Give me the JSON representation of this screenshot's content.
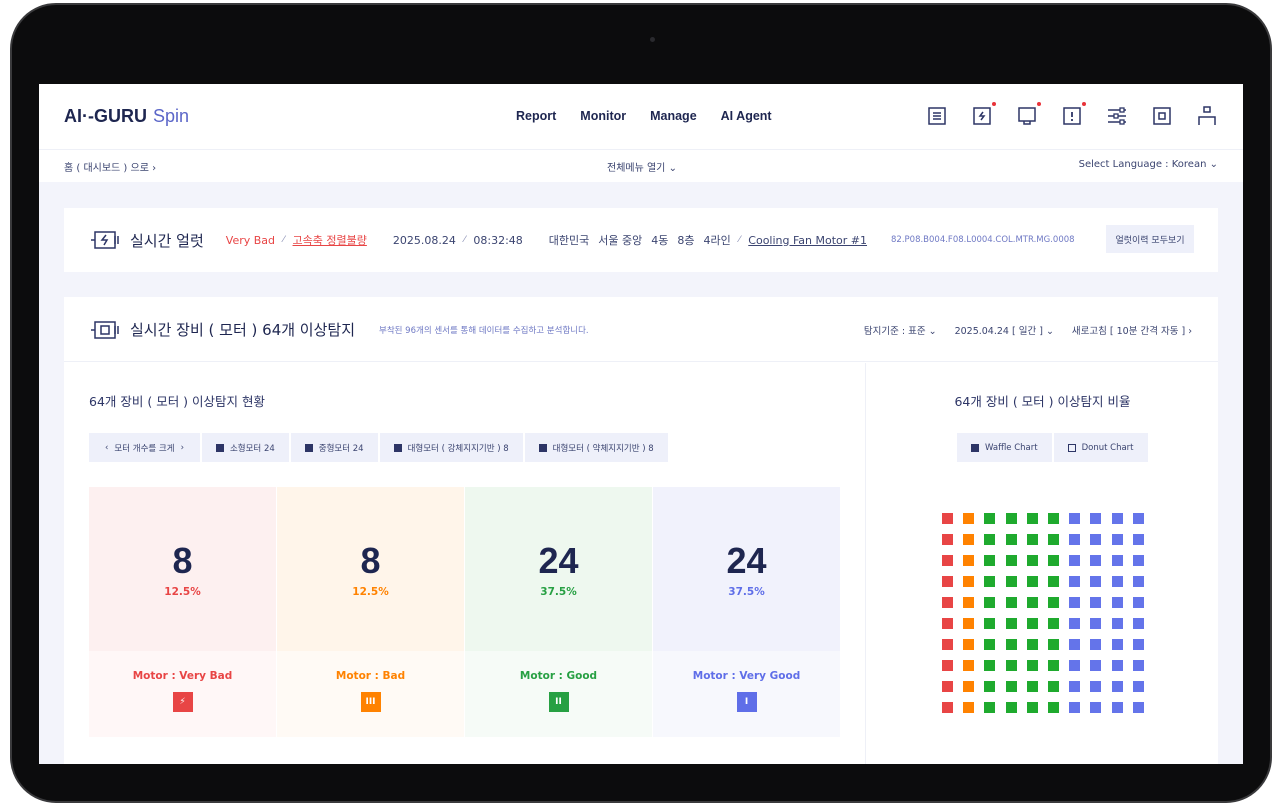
{
  "header": {
    "logo": "AI·-GURU",
    "logo_suffix": "Spin",
    "nav": [
      "Report",
      "Monitor",
      "Manage",
      "AI Agent"
    ],
    "icons": [
      {
        "name": "report-list-icon",
        "dot": false
      },
      {
        "name": "alert-bolt-icon",
        "dot": true
      },
      {
        "name": "monitor-icon",
        "dot": true
      },
      {
        "name": "warning-icon",
        "dot": true
      },
      {
        "name": "settings-sliders-icon",
        "dot": false
      },
      {
        "name": "device-icon",
        "dot": false
      },
      {
        "name": "user-icon",
        "dot": false
      }
    ]
  },
  "breadcrumb": {
    "home": "홈 ( 대시보드 ) 으로",
    "menu": "전체메뉴 열기",
    "language": "Select Language : Korean"
  },
  "alert": {
    "title": "실시간 얼럿",
    "status": "Very Bad",
    "issue": "고속축 정렬불량",
    "date": "2025.08.24",
    "time": "08:32:48",
    "location": [
      "대한민국",
      "서울 중앙",
      "4동",
      "8층",
      "4라인"
    ],
    "device": "Cooling Fan Motor #1",
    "code": "82.P08.B004.F08.L0004.COL.MTR.MG.0008",
    "history_button": "얼럿이력 모두보기"
  },
  "main": {
    "title": "실시간 장비 ( 모터 ) 64개 이상탐지",
    "subtitle": "부착된 96개의 센서를 통해 데이터를 수집하고 분석합니다.",
    "options": [
      "탐지기준 : 표준",
      "2025.04.24 [ 일간 ]",
      "새로고침 [ 10분 간격 자동 ]"
    ]
  },
  "left": {
    "title": "64개 장비 ( 모터 ) 이상탐지 현황",
    "tabs": [
      "모터 개수를 크게",
      "소형모터 24",
      "중형모터 24",
      "대형모터 ( 강체지지기반 ) 8",
      "대형모터 ( 약체지지기반 ) 8"
    ],
    "cards": [
      {
        "count": "8",
        "percent": "12.5%",
        "label": "Motor : Very Bad",
        "color": "#e84545",
        "bg": "#fdf0f0",
        "bg2": "#fff7f7",
        "badge": "⚡"
      },
      {
        "count": "8",
        "percent": "12.5%",
        "label": "Motor : Bad",
        "color": "#ff8200",
        "bg": "#fff5ea",
        "bg2": "#fffaf5",
        "badge": "III"
      },
      {
        "count": "24",
        "percent": "37.5%",
        "label": "Motor : Good",
        "color": "#27a043",
        "bg": "#eef8ef",
        "bg2": "#f6fbf7",
        "badge": "II"
      },
      {
        "count": "24",
        "percent": "37.5%",
        "label": "Motor : Very Good",
        "color": "#5f6ee8",
        "bg": "#f1f2fc",
        "bg2": "#f7f8fd",
        "badge": "I"
      }
    ]
  },
  "right": {
    "title": "64개 장비 ( 모터 ) 이상탐지 비율",
    "tabs": [
      "Waffle Chart",
      "Donut Chart"
    ],
    "waffle": {
      "rows": 10,
      "columns": 10,
      "column_colors": [
        "#e84545",
        "#ff8200",
        "#1faa2e",
        "#1faa2e",
        "#1faa2e",
        "#1faa2e",
        "#6474ea",
        "#6474ea",
        "#6474ea",
        "#6474ea"
      ]
    }
  }
}
